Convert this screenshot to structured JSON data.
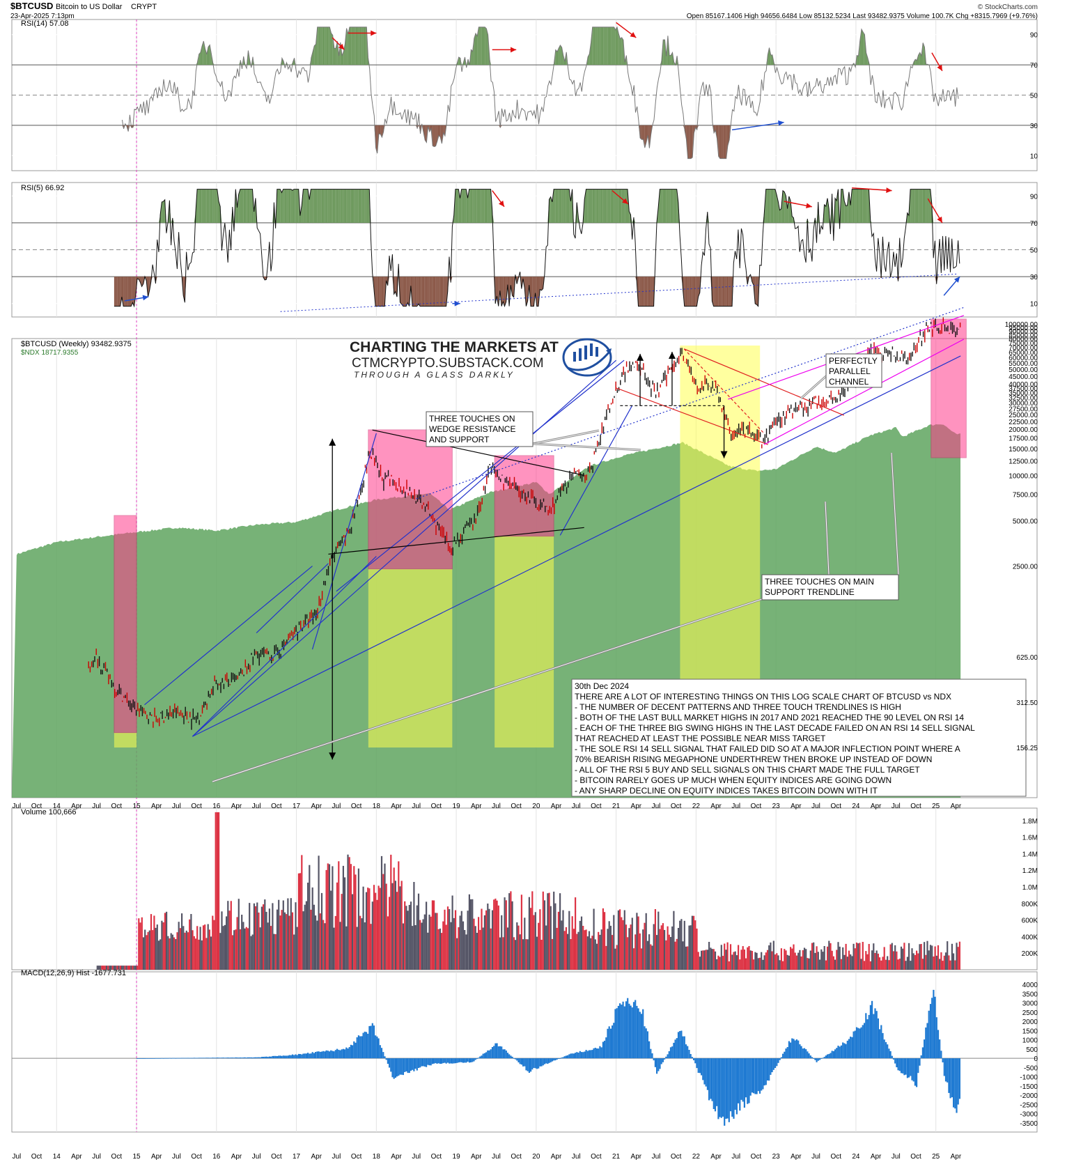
{
  "header": {
    "symbol": "$BTCUSD",
    "name": "Bitcoin to US Dollar",
    "exchange": "CRYPT",
    "datetime": "23-Apr-2025 7:13pm",
    "ohlc": "Open 85167.1406  High 94656.6484  Low 85132.5234  Last 93482.9375  Volume 100.7K  Chg +8315.7969 (+9.76%)",
    "source": "© StockCharts.com"
  },
  "branding": {
    "line1": "CHARTING THE MARKETS AT",
    "line2": "CTMCRYPTO.SUBSTACK.COM",
    "line3": "THROUGH A GLASS DARKLY"
  },
  "colors": {
    "rsi_fill_high": "#6f9a5f",
    "rsi_fill_low": "#8c5a4a",
    "ndx_area": "#5fa45f",
    "pink_box": "#ff3c8c",
    "yellow_box": "#ffff50",
    "bull_bar": "#555566",
    "bear_bar": "#dd3344",
    "macd_hist": "#1f7ad2",
    "trend_blue": "#2233cc",
    "channel_magenta": "#ee00ee"
  },
  "panels": {
    "rsi14": {
      "label": "RSI(14) 57.08",
      "ticks": [
        "90",
        "70",
        "50",
        "30",
        "10"
      ]
    },
    "rsi5": {
      "label": "RSI(5) 66.92",
      "ticks": [
        "90",
        "70",
        "50",
        "30",
        "10"
      ]
    },
    "price": {
      "label": "$BTCUSD (Weekly) 93482.9375",
      "label2": "$NDX 18717.9355",
      "ticks": [
        "15000.00",
        "12500.00",
        "10000.00",
        "7500.00",
        "5000.00",
        "2500.00",
        "625.00",
        "312.50",
        "156.25"
      ],
      "crowded_ticks": [
        "100000.00",
        "95000.00",
        "90000.00",
        "85000.00",
        "80000.00",
        "75000.00",
        "70000.00",
        "65000.00",
        "60000.00",
        "55000.00",
        "50000.00",
        "45000.00",
        "40000.00",
        "37500.00",
        "35000.00",
        "32500.00",
        "30000.00",
        "27500.00",
        "25000.00",
        "22500.00",
        "20000.00",
        "17500.00"
      ]
    },
    "volume": {
      "label": "Volume 100,666",
      "ticks": [
        "1.8M",
        "1.6M",
        "1.4M",
        "1.2M",
        "1.0M",
        "800K",
        "600K",
        "400K",
        "200K"
      ]
    },
    "macd": {
      "label": "MACD(12,26,9) Hist -1677.731",
      "ticks": [
        "4000",
        "3500",
        "3000",
        "2500",
        "2000",
        "1500",
        "1000",
        "500",
        "0",
        "-500",
        "-1000",
        "-1500",
        "-2000",
        "-2500",
        "-3000",
        "-3500"
      ]
    }
  },
  "x_axis": [
    "Jul",
    "Oct",
    "14",
    "Apr",
    "Jul",
    "Oct",
    "15",
    "Apr",
    "Jul",
    "Oct",
    "16",
    "Apr",
    "Jul",
    "Oct",
    "17",
    "Apr",
    "Jul",
    "Oct",
    "18",
    "Apr",
    "Jul",
    "Oct",
    "19",
    "Apr",
    "Jul",
    "Oct",
    "20",
    "Apr",
    "Jul",
    "Oct",
    "21",
    "Apr",
    "Jul",
    "Oct",
    "22",
    "Apr",
    "Jul",
    "Oct",
    "23",
    "Apr",
    "Jul",
    "Oct",
    "24",
    "Apr",
    "Jul",
    "Oct",
    "25",
    "Apr"
  ],
  "annotations": {
    "wedge": [
      "THREE TOUCHES ON",
      "WEDGE RESISTANCE",
      "AND SUPPORT"
    ],
    "channel": [
      "PERFECTLY",
      "PARALLEL",
      "CHANNEL"
    ],
    "support": [
      "THREE TOUCHES ON MAIN",
      "SUPPORT TRENDLINE"
    ]
  },
  "notes": {
    "date": "30th Dec 2024",
    "lines": [
      "THERE ARE A LOT OF INTERESTING THINGS ON THIS LOG SCALE CHART OF BTCUSD vs NDX",
      "- THE NUMBER OF DECENT PATTERNS AND THREE TOUCH TRENDLINES IS HIGH",
      "- BOTH OF THE LAST BULL MARKET HIGHS IN 2017 AND 2021 REACHED THE 90 LEVEL ON RSI 14",
      "- EACH OF THE THREE BIG SWING HIGHS IN THE LAST DECADE FAILED ON AN RSI 14 SELL SIGNAL",
      "THAT REACHED AT LEAST THE POSSIBLE NEAR MISS TARGET",
      "- THE SOLE RSI 14 SELL SIGNAL THAT FAILED DID SO AT A MAJOR INFLECTION POINT WHERE A",
      "70% BEARISH RISING MEGAPHONE UNDERTHREW THEN BROKE UP INSTEAD OF DOWN",
      "- ALL OF THE RSI 5 BUY AND SELL SIGNALS ON THIS CHART MADE THE FULL TARGET",
      "- BITCOIN RARELY GOES UP MUCH WHEN EQUITY INDICES ARE GOING DOWN",
      "- ANY SHARP DECLINE ON EQUITY INDICES TAKES BITCOIN DOWN WITH IT"
    ]
  },
  "chart_data": {
    "type": "line",
    "frequency": "weekly",
    "scale": "log",
    "series": [
      {
        "name": "$BTCUSD",
        "x": [
          "2014-05",
          "2014-07",
          "2014-10",
          "2015-01",
          "2015-04",
          "2015-07",
          "2015-10",
          "2016-01",
          "2016-04",
          "2016-07",
          "2016-10",
          "2017-01",
          "2017-04",
          "2017-06",
          "2017-09",
          "2017-12",
          "2018-02",
          "2018-05",
          "2018-08",
          "2018-11",
          "2018-12",
          "2019-04",
          "2019-06",
          "2019-09",
          "2019-12",
          "2020-03",
          "2020-06",
          "2020-09",
          "2020-12",
          "2021-02",
          "2021-04",
          "2021-07",
          "2021-10",
          "2021-11",
          "2022-01",
          "2022-04",
          "2022-06",
          "2022-09",
          "2022-11",
          "2023-01",
          "2023-04",
          "2023-07",
          "2023-10",
          "2024-01",
          "2024-03",
          "2024-06",
          "2024-09",
          "2024-12",
          "2025-02",
          "2025-04"
        ],
        "values": [
          500,
          620,
          380,
          280,
          240,
          270,
          240,
          420,
          430,
          660,
          640,
          950,
          1200,
          2600,
          4300,
          14000,
          9500,
          8500,
          6500,
          4000,
          3300,
          5200,
          11000,
          8500,
          7200,
          5800,
          9500,
          10500,
          28000,
          48000,
          58000,
          34000,
          60000,
          66000,
          38000,
          40000,
          19500,
          19500,
          16500,
          23000,
          28500,
          30000,
          34000,
          43000,
          68000,
          64000,
          60000,
          100000,
          96000,
          93483
        ]
      },
      {
        "name": "$NDX",
        "x": [
          "2013-07",
          "2014-01",
          "2014-07",
          "2015-01",
          "2015-07",
          "2016-01",
          "2016-07",
          "2017-01",
          "2017-07",
          "2018-01",
          "2018-09",
          "2018-12",
          "2019-06",
          "2020-01",
          "2020-03",
          "2020-09",
          "2021-02",
          "2021-11",
          "2022-06",
          "2022-10",
          "2023-01",
          "2023-07",
          "2023-10",
          "2024-03",
          "2024-07",
          "2024-08",
          "2024-12",
          "2025-02",
          "2025-04"
        ],
        "values": [
          3000,
          3600,
          3900,
          4200,
          4500,
          4300,
          4700,
          4900,
          5900,
          6900,
          7600,
          5900,
          7700,
          9000,
          7500,
          11500,
          13500,
          16500,
          11500,
          10700,
          11000,
          15500,
          14100,
          18300,
          20700,
          18000,
          21500,
          22000,
          18718
        ]
      }
    ],
    "rsi14": {
      "peaks_reaching_90": [
        "2017-12",
        "2021-03"
      ],
      "overbought": 70,
      "midline": 50,
      "oversold": 30
    },
    "macd_hist_range": [
      -3500,
      4000
    ],
    "volume_max": "1.8M"
  }
}
